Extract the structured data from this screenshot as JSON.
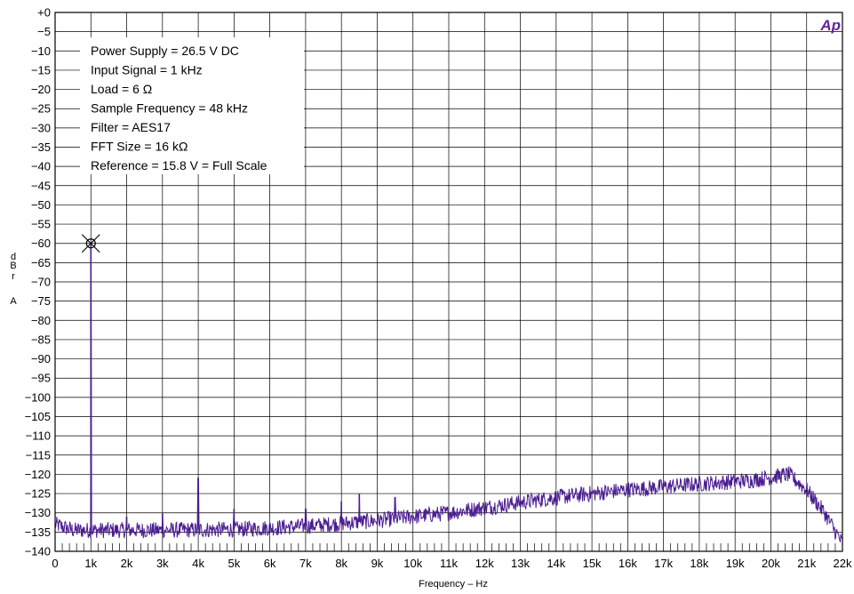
{
  "chart_data": {
    "type": "line",
    "title": "",
    "xlabel": "Frequency – Hz",
    "ylabel_letters": [
      "d",
      "B",
      "r",
      "A"
    ],
    "xlim": [
      0,
      22000
    ],
    "ylim": [
      -140,
      0
    ],
    "x_ticks": [
      0,
      1000,
      2000,
      3000,
      4000,
      5000,
      6000,
      7000,
      8000,
      9000,
      10000,
      11000,
      12000,
      13000,
      14000,
      15000,
      16000,
      17000,
      18000,
      19000,
      20000,
      21000,
      22000
    ],
    "x_tick_labels": [
      "0",
      "1k",
      "2k",
      "3k",
      "4k",
      "5k",
      "6k",
      "7k",
      "8k",
      "9k",
      "10k",
      "11k",
      "12k",
      "13k",
      "14k",
      "15k",
      "16k",
      "17k",
      "18k",
      "19k",
      "20k",
      "21k",
      "22k"
    ],
    "y_ticks": [
      0,
      -5,
      -10,
      -15,
      -20,
      -25,
      -30,
      -35,
      -40,
      -45,
      -50,
      -55,
      -60,
      -65,
      -70,
      -75,
      -80,
      -85,
      -90,
      -95,
      -100,
      -105,
      -110,
      -115,
      -120,
      -125,
      -130,
      -135,
      -140
    ],
    "y_tick_labels": [
      "+0",
      "−5",
      "−10",
      "−15",
      "−20",
      "−25",
      "−30",
      "−35",
      "−40",
      "−45",
      "−50",
      "−55",
      "−60",
      "−65",
      "−70",
      "−75",
      "−80",
      "−85",
      "−90",
      "−95",
      "−100",
      "−105",
      "−110",
      "−115",
      "−120",
      "−125",
      "−130",
      "−135",
      "−140"
    ],
    "grid": true,
    "line_color": "#4b1d91",
    "logo_color": "#6a1fa3",
    "logo_text": "Ap",
    "legend_placement": "top-left",
    "legend": [
      "Power Supply = 26.5 V DC",
      "Input Signal = 1 kHz",
      "Load = 6 Ω",
      "Sample Frequency = 48 kHz",
      "Filter = AES17",
      "FFT Size = 16 kΩ",
      "Reference = 15.8 V = Full Scale"
    ],
    "marker": {
      "x": 1000,
      "y": -60
    },
    "noise_floor": [
      [
        0,
        -133
      ],
      [
        500,
        -134.5
      ],
      [
        1500,
        -134.5
      ],
      [
        3000,
        -134.5
      ],
      [
        5000,
        -134.3
      ],
      [
        7000,
        -133.5
      ],
      [
        9000,
        -132
      ],
      [
        11000,
        -130
      ],
      [
        12500,
        -128
      ],
      [
        14000,
        -126
      ],
      [
        16000,
        -124
      ],
      [
        18000,
        -122.5
      ],
      [
        19500,
        -121.5
      ],
      [
        20500,
        -120
      ],
      [
        21000,
        -124
      ],
      [
        21500,
        -130
      ],
      [
        22000,
        -138
      ]
    ],
    "peaks": [
      {
        "x": 1000,
        "y": -60
      },
      {
        "x": 2000,
        "y": -131
      },
      {
        "x": 3000,
        "y": -130
      },
      {
        "x": 4000,
        "y": -121
      },
      {
        "x": 5000,
        "y": -129
      },
      {
        "x": 7000,
        "y": -129
      },
      {
        "x": 8000,
        "y": -127
      },
      {
        "x": 8500,
        "y": -125
      },
      {
        "x": 9500,
        "y": -126
      }
    ]
  }
}
